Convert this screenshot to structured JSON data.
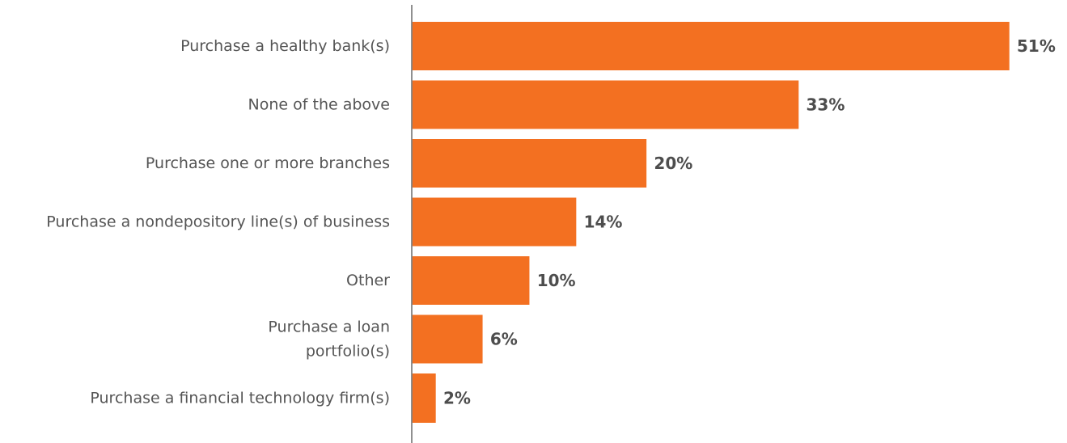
{
  "chart_data": {
    "type": "bar",
    "orientation": "horizontal",
    "categories": [
      "Purchase a healthy bank(s)",
      "None of the above",
      "Purchase one or more branches",
      "Purchase a nondepository line(s) of business",
      "Other",
      "Purchase a loan portfolio(s)",
      "Purchase a financial technology firm(s)"
    ],
    "values": [
      51,
      33,
      20,
      14,
      10,
      6,
      2
    ],
    "value_labels": [
      "51%",
      "33%",
      "20%",
      "14%",
      "10%",
      "6%",
      "2%"
    ],
    "unit": "%",
    "xlim": [
      0,
      51
    ],
    "grid": false,
    "legend": "none",
    "colors": {
      "bar": "#f37021",
      "value_text": "#4d4d4d",
      "category_text": "#555555",
      "axis": "#6b6b6b"
    }
  }
}
